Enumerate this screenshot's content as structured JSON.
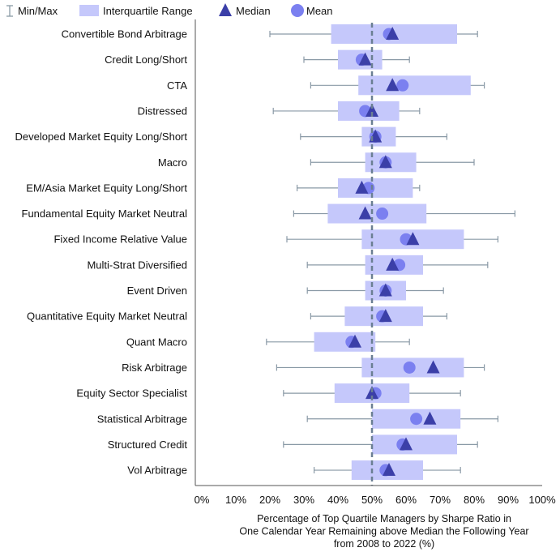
{
  "chart_data": {
    "type": "box",
    "orientation": "horizontal",
    "legend": {
      "position": "top-left",
      "items": [
        {
          "key": "minmax",
          "label": "Min/Max"
        },
        {
          "key": "iqr",
          "label": "Interquartile Range"
        },
        {
          "key": "median",
          "label": "Median"
        },
        {
          "key": "mean",
          "label": "Mean"
        }
      ]
    },
    "xlabel_lines": [
      "Percentage of Top Quartile Managers by Sharpe Ratio in",
      "One Calendar Year Remaining above Median the Following Year",
      "from 2008 to 2022 (%)"
    ],
    "xlim": [
      0,
      100
    ],
    "xticks": [
      0,
      10,
      20,
      30,
      40,
      50,
      60,
      70,
      80,
      90,
      100
    ],
    "xtick_labels": [
      "0%",
      "10%",
      "20%",
      "30%",
      "40%",
      "50%",
      "60%",
      "70%",
      "80%",
      "90%",
      "100%"
    ],
    "reference_line": 50,
    "colors": {
      "iqr": "#c5c8fb",
      "median": "#3b3fa8",
      "mean": "#7b80f0",
      "whisker": "#8a9aa6",
      "reference": "#6b7f93",
      "axis": "#555555"
    },
    "categories": [
      "Convertible Bond Arbitrage",
      "Credit Long/Short",
      "CTA",
      "Distressed",
      "Developed Market Equity Long/Short",
      "Macro",
      "EM/Asia Market Equity Long/Short",
      "Fundamental Equity Market Neutral",
      "Fixed Income Relative Value",
      "Multi-Strat Diversified",
      "Event Driven",
      "Quantitative Equity Market Neutral",
      "Quant Macro",
      "Risk Arbitrage",
      "Equity Sector Specialist",
      "Statistical Arbitrage",
      "Structured Credit",
      "Vol Arbitrage"
    ],
    "series": [
      {
        "name": "Min/Max",
        "min": [
          20,
          30,
          32,
          21,
          29,
          32,
          28,
          27,
          25,
          31,
          31,
          32,
          19,
          22,
          24,
          31,
          24,
          33
        ],
        "max": [
          81,
          61,
          83,
          64,
          72,
          80,
          64,
          92,
          87,
          84,
          71,
          72,
          61,
          83,
          76,
          87,
          81,
          76
        ]
      },
      {
        "name": "Interquartile Range",
        "q1": [
          38,
          40,
          46,
          40,
          47,
          48,
          40,
          37,
          47,
          48,
          48,
          42,
          33,
          47,
          39,
          50,
          50,
          44
        ],
        "q3": [
          75,
          53,
          79,
          58,
          57,
          63,
          62,
          66,
          77,
          65,
          60,
          65,
          51,
          77,
          61,
          76,
          75,
          65
        ]
      },
      {
        "name": "Median",
        "values": [
          56,
          48,
          56,
          50,
          51,
          54,
          47,
          48,
          62,
          56,
          54,
          54,
          45,
          68,
          50,
          67,
          60,
          55
        ]
      },
      {
        "name": "Mean",
        "values": [
          55,
          47,
          59,
          48,
          51,
          54,
          49,
          53,
          60,
          58,
          54,
          53,
          44,
          61,
          51,
          63,
          59,
          54
        ]
      }
    ]
  }
}
